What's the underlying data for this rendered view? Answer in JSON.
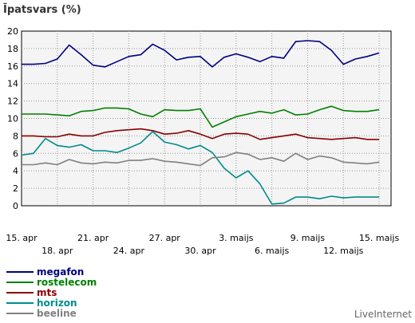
{
  "chart_data": {
    "type": "line",
    "title": "Īpatsvars (%)",
    "ylim": [
      0,
      20
    ],
    "yticks": [
      0,
      2,
      4,
      6,
      8,
      10,
      12,
      14,
      16,
      18,
      20
    ],
    "x_count": 32,
    "xticks_row1": [
      {
        "i": 0,
        "label": "15. apr"
      },
      {
        "i": 6,
        "label": "21. apr"
      },
      {
        "i": 12,
        "label": "27. apr"
      },
      {
        "i": 18,
        "label": "3. maijs"
      },
      {
        "i": 24,
        "label": "9. maijs"
      },
      {
        "i": 30,
        "label": "15. maijs"
      }
    ],
    "xticks_row2": [
      {
        "i": 3,
        "label": "18. apr"
      },
      {
        "i": 9,
        "label": "24. apr"
      },
      {
        "i": 15,
        "label": "30. apr"
      },
      {
        "i": 21,
        "label": "6. maijs"
      },
      {
        "i": 27,
        "label": "12. maijs"
      }
    ],
    "grid": true,
    "legend_position": "bottom-left",
    "series": [
      {
        "name": "megafon",
        "color": "#000080",
        "values": [
          16.2,
          16.2,
          16.3,
          16.8,
          18.4,
          17.3,
          16.1,
          15.9,
          16.5,
          17.1,
          17.3,
          18.5,
          17.8,
          16.7,
          17.0,
          17.1,
          15.9,
          17.0,
          17.4,
          17.0,
          16.5,
          17.1,
          16.9,
          18.8,
          18.9,
          18.8,
          17.8,
          16.2,
          16.8,
          17.1,
          17.5
        ]
      },
      {
        "name": "rostelecom",
        "color": "#008000",
        "values": [
          10.5,
          10.5,
          10.5,
          10.4,
          10.3,
          10.8,
          10.9,
          11.2,
          11.2,
          11.1,
          10.5,
          10.2,
          11.0,
          10.9,
          10.9,
          11.1,
          9.0,
          9.6,
          10.2,
          10.5,
          10.8,
          10.6,
          11.0,
          10.4,
          10.5,
          11.0,
          11.4,
          10.9,
          10.8,
          10.8,
          11.0
        ]
      },
      {
        "name": "mts",
        "color": "#8b0000",
        "values": [
          8.0,
          8.0,
          7.9,
          7.9,
          8.2,
          8.0,
          8.0,
          8.4,
          8.6,
          8.7,
          8.8,
          8.6,
          8.2,
          8.3,
          8.6,
          8.2,
          7.7,
          8.2,
          8.3,
          8.2,
          7.6,
          7.8,
          8.0,
          8.2,
          7.8,
          7.7,
          7.6,
          7.7,
          7.8,
          7.6,
          7.6
        ]
      },
      {
        "name": "horizon",
        "color": "#008b8b",
        "values": [
          5.8,
          6.0,
          7.7,
          6.9,
          6.7,
          7.0,
          6.3,
          6.3,
          6.1,
          6.6,
          7.2,
          8.5,
          7.3,
          7.0,
          6.5,
          6.9,
          6.1,
          4.3,
          3.2,
          4.0,
          2.5,
          0.2,
          0.3,
          1.0,
          1.0,
          0.8,
          1.1,
          0.9,
          1.0,
          1.0,
          1.0
        ]
      },
      {
        "name": "beeline",
        "color": "#808080",
        "values": [
          4.7,
          4.7,
          4.9,
          4.7,
          5.3,
          4.9,
          4.8,
          5.0,
          4.9,
          5.2,
          5.2,
          5.4,
          5.1,
          5.0,
          4.8,
          4.6,
          5.5,
          5.6,
          6.1,
          5.9,
          5.3,
          5.5,
          5.1,
          6.0,
          5.3,
          5.7,
          5.5,
          5.0,
          4.9,
          4.8,
          5.0
        ]
      }
    ]
  },
  "branding": "LiveInternet"
}
